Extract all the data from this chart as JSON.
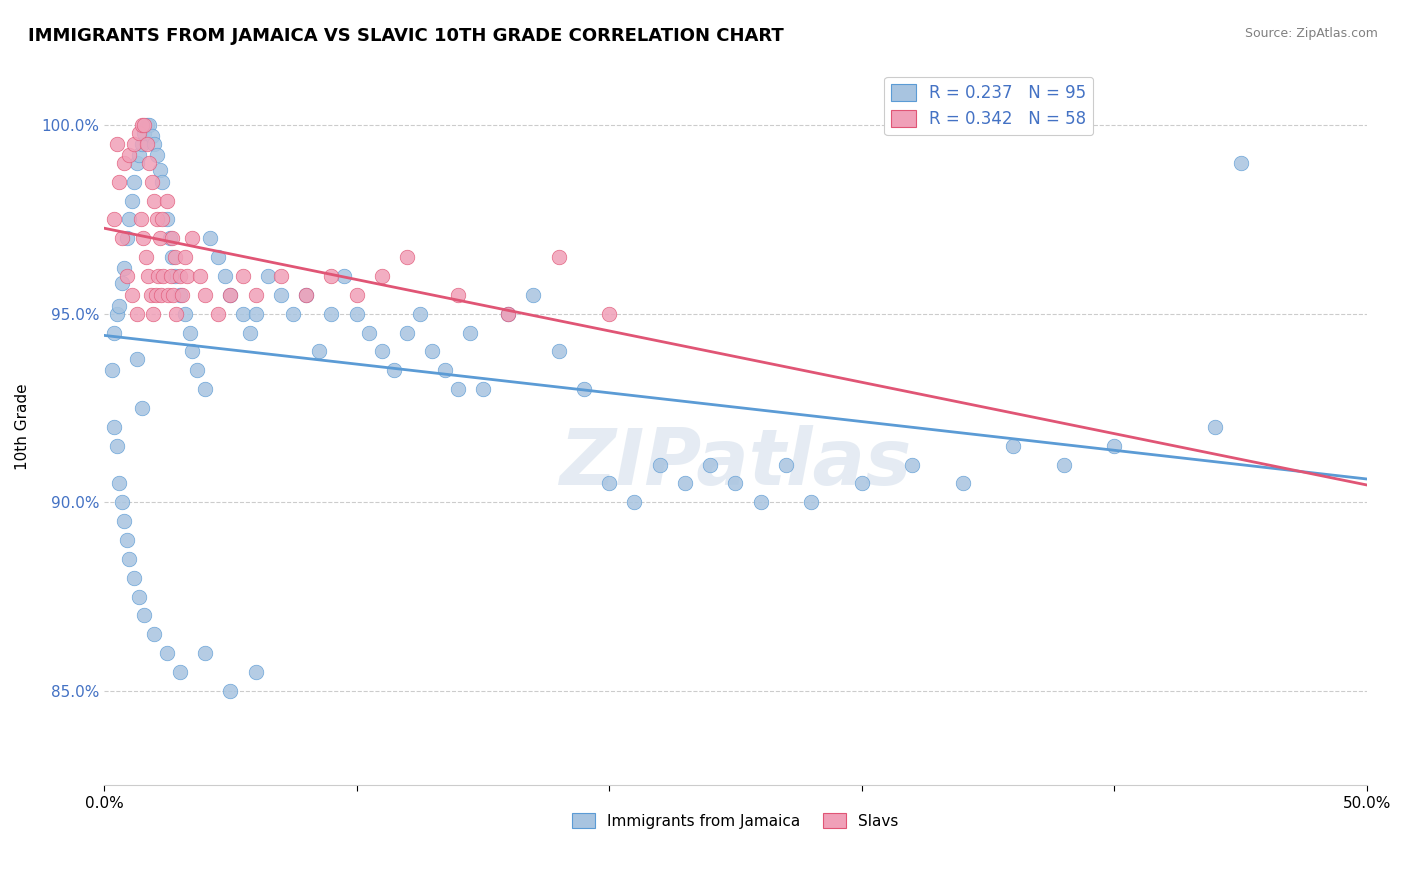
{
  "title": "IMMIGRANTS FROM JAMAICA VS SLAVIC 10TH GRADE CORRELATION CHART",
  "source_text": "Source: ZipAtlas.com",
  "ylabel": "10th Grade",
  "xlim": [
    0.0,
    50.0
  ],
  "ylim": [
    82.5,
    101.5
  ],
  "yticks": [
    85.0,
    90.0,
    95.0,
    100.0
  ],
  "ytick_labels": [
    "85.0%",
    "90.0%",
    "95.0%",
    "100.0%"
  ],
  "xticks": [
    0.0,
    10.0,
    20.0,
    30.0,
    40.0,
    50.0
  ],
  "xtick_labels": [
    "0.0%",
    "",
    "",
    "",
    "",
    "50.0%"
  ],
  "legend_r1": "R = 0.237",
  "legend_n1": "N = 95",
  "legend_r2": "R = 0.342",
  "legend_n2": "N = 58",
  "color_blue": "#a8c4e0",
  "color_pink": "#f0a0b8",
  "color_blue_line": "#5b9bd5",
  "color_pink_line": "#e05575",
  "color_legend_text": "#4472c4",
  "color_grid": "#cccccc",
  "watermark_text": "ZIPatlas",
  "jamaica_x": [
    0.3,
    0.4,
    0.5,
    0.6,
    0.7,
    0.8,
    0.9,
    1.0,
    1.1,
    1.2,
    1.3,
    1.4,
    1.5,
    1.6,
    1.7,
    1.8,
    1.9,
    2.0,
    2.1,
    2.2,
    2.3,
    2.5,
    2.6,
    2.7,
    2.8,
    3.0,
    3.2,
    3.4,
    3.5,
    3.7,
    4.0,
    4.2,
    4.5,
    4.8,
    5.0,
    5.5,
    5.8,
    6.0,
    6.5,
    7.0,
    7.5,
    8.0,
    8.5,
    9.0,
    9.5,
    10.0,
    10.5,
    11.0,
    11.5,
    12.0,
    12.5,
    13.0,
    13.5,
    14.0,
    14.5,
    15.0,
    16.0,
    17.0,
    18.0,
    19.0,
    20.0,
    21.0,
    22.0,
    23.0,
    24.0,
    25.0,
    26.0,
    27.0,
    28.0,
    30.0,
    32.0,
    34.0,
    36.0,
    38.0,
    40.0,
    44.0,
    0.4,
    0.5,
    0.6,
    0.7,
    0.8,
    0.9,
    1.0,
    1.2,
    1.4,
    1.6,
    2.0,
    2.5,
    3.0,
    4.0,
    5.0,
    6.0,
    45.0,
    1.3,
    1.5
  ],
  "jamaica_y": [
    93.5,
    94.5,
    95.0,
    95.2,
    95.8,
    96.2,
    97.0,
    97.5,
    98.0,
    98.5,
    99.0,
    99.2,
    99.5,
    99.8,
    100.0,
    100.0,
    99.7,
    99.5,
    99.2,
    98.8,
    98.5,
    97.5,
    97.0,
    96.5,
    96.0,
    95.5,
    95.0,
    94.5,
    94.0,
    93.5,
    93.0,
    97.0,
    96.5,
    96.0,
    95.5,
    95.0,
    94.5,
    95.0,
    96.0,
    95.5,
    95.0,
    95.5,
    94.0,
    95.0,
    96.0,
    95.0,
    94.5,
    94.0,
    93.5,
    94.5,
    95.0,
    94.0,
    93.5,
    93.0,
    94.5,
    93.0,
    95.0,
    95.5,
    94.0,
    93.0,
    90.5,
    90.0,
    91.0,
    90.5,
    91.0,
    90.5,
    90.0,
    91.0,
    90.0,
    90.5,
    91.0,
    90.5,
    91.5,
    91.0,
    91.5,
    92.0,
    92.0,
    91.5,
    90.5,
    90.0,
    89.5,
    89.0,
    88.5,
    88.0,
    87.5,
    87.0,
    86.5,
    86.0,
    85.5,
    86.0,
    85.0,
    85.5,
    99.0,
    93.8,
    92.5
  ],
  "slavs_x": [
    0.4,
    0.5,
    0.6,
    0.7,
    0.8,
    0.9,
    1.0,
    1.1,
    1.2,
    1.3,
    1.4,
    1.45,
    1.5,
    1.55,
    1.6,
    1.65,
    1.7,
    1.75,
    1.8,
    1.85,
    1.9,
    1.95,
    2.0,
    2.05,
    2.1,
    2.15,
    2.2,
    2.25,
    2.3,
    2.35,
    2.5,
    2.55,
    2.65,
    2.7,
    2.75,
    2.8,
    2.85,
    3.0,
    3.1,
    3.2,
    3.3,
    3.5,
    3.8,
    4.0,
    4.5,
    5.0,
    5.5,
    6.0,
    7.0,
    8.0,
    9.0,
    10.0,
    11.0,
    12.0,
    14.0,
    16.0,
    18.0,
    20.0
  ],
  "slavs_y": [
    97.5,
    99.5,
    98.5,
    97.0,
    99.0,
    96.0,
    99.2,
    95.5,
    99.5,
    95.0,
    99.8,
    97.5,
    100.0,
    97.0,
    100.0,
    96.5,
    99.5,
    96.0,
    99.0,
    95.5,
    98.5,
    95.0,
    98.0,
    95.5,
    97.5,
    96.0,
    97.0,
    95.5,
    97.5,
    96.0,
    98.0,
    95.5,
    96.0,
    97.0,
    95.5,
    96.5,
    95.0,
    96.0,
    95.5,
    96.5,
    96.0,
    97.0,
    96.0,
    95.5,
    95.0,
    95.5,
    96.0,
    95.5,
    96.0,
    95.5,
    96.0,
    95.5,
    96.0,
    96.5,
    95.5,
    95.0,
    96.5,
    95.0
  ]
}
